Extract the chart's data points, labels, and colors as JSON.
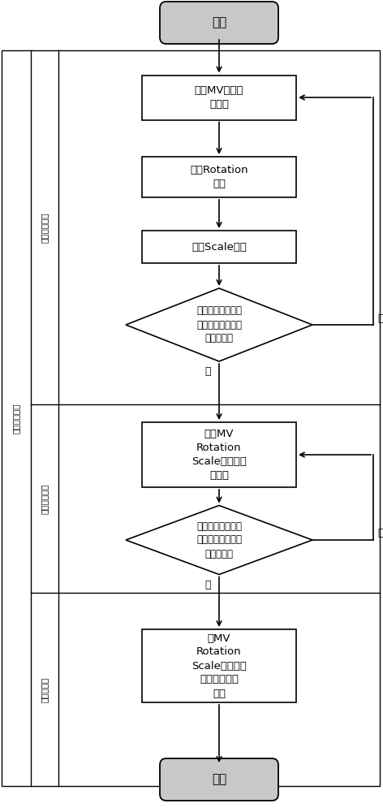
{
  "bg_color": "#ffffff",
  "box_fill": "#ffffff",
  "box_edge": "#000000",
  "terminal_fill": "#c8c8c8",
  "terminal_edge": "#000000",
  "diamond_fill": "#ffffff",
  "diamond_edge": "#000000",
  "text_color": "#000000",
  "label_start": "开始",
  "label_end": "结束",
  "label_box1": "针对MV进行菱\n形搜索",
  "label_box2": "针对Rotation\n搜索",
  "label_box3": "针对Scale搜索",
  "label_diamond1": "是否第一次搜索或\n搜索到了比前一次\n更低的误差",
  "label_box4": "针对MV\nRotation\nScale做梯度下\n降搜索",
  "label_diamond2": "是否误差下降小于\n预定值或迭代次数\n大于预定值",
  "label_box5": "在MV\nRotation\nScale三个维度\n上进行两点式\n搜索",
  "label_yes1": "是",
  "label_no1": "否",
  "label_yes2": "是",
  "label_no2": "否",
  "sidebar_label1": "帧间运动搜索",
  "sidebar_label2": "初始迭代搜索",
  "sidebar_label3": "梯度下降搜索",
  "sidebar_label4": "局部全搜索",
  "fig_width": 4.72,
  "fig_height": 10.0,
  "dpi": 100
}
